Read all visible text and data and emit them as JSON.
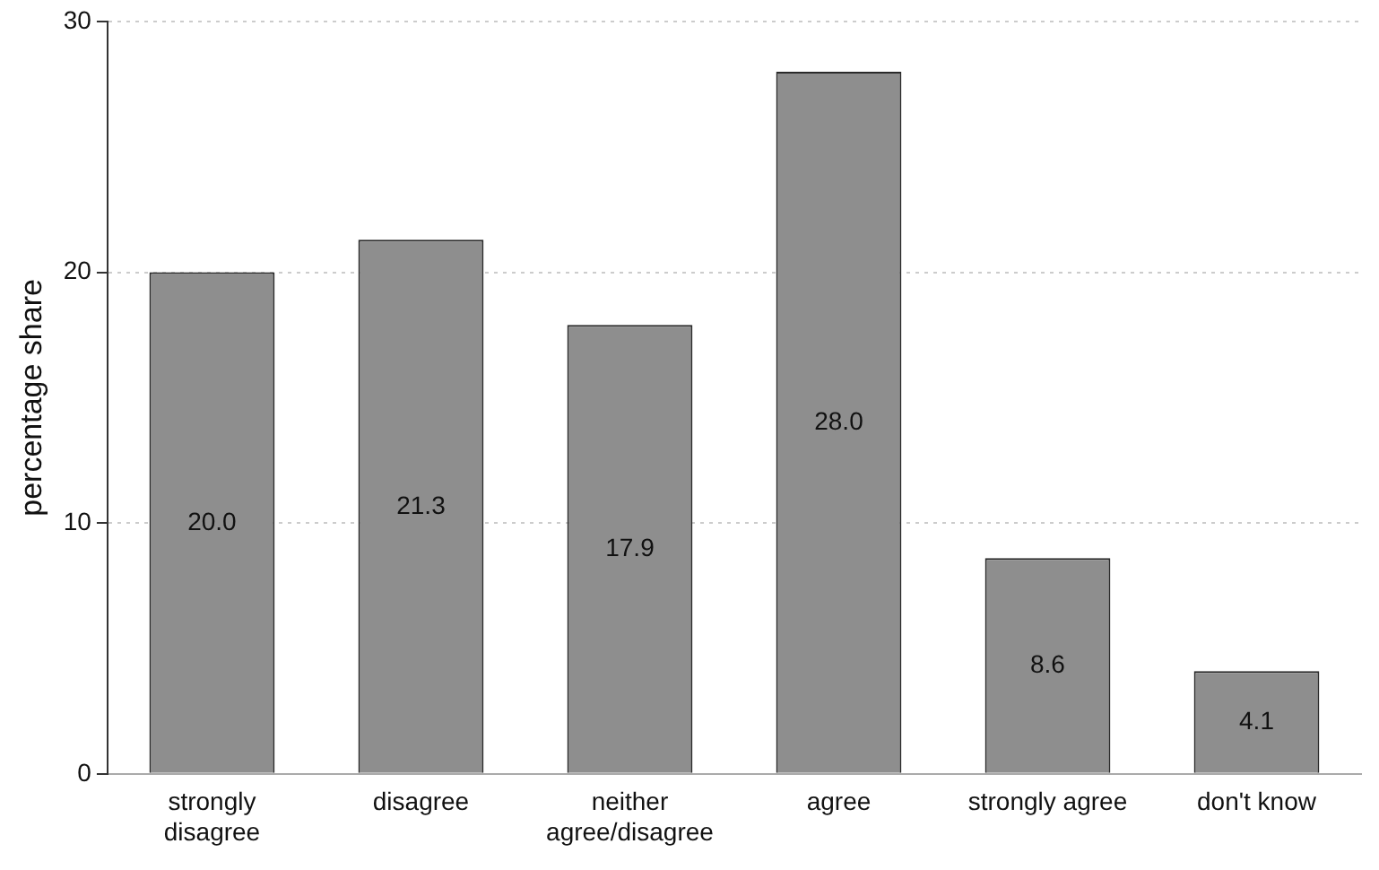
{
  "chart_data": {
    "type": "bar",
    "ylabel": "percentage share",
    "categories": [
      "strongly disagree",
      "disagree",
      "neither agree/disagree",
      "agree",
      "strongly agree",
      "don't know"
    ],
    "values": [
      20.0,
      21.3,
      17.9,
      28.0,
      8.6,
      4.1
    ],
    "value_labels": [
      "20.0",
      "21.3",
      "17.9",
      "28.0",
      "8.6",
      "4.1"
    ],
    "color": "#8e8e8e",
    "ylim": [
      0,
      30
    ],
    "yticks": [
      0,
      10,
      20,
      30
    ],
    "grid": "y",
    "legend": false
  }
}
